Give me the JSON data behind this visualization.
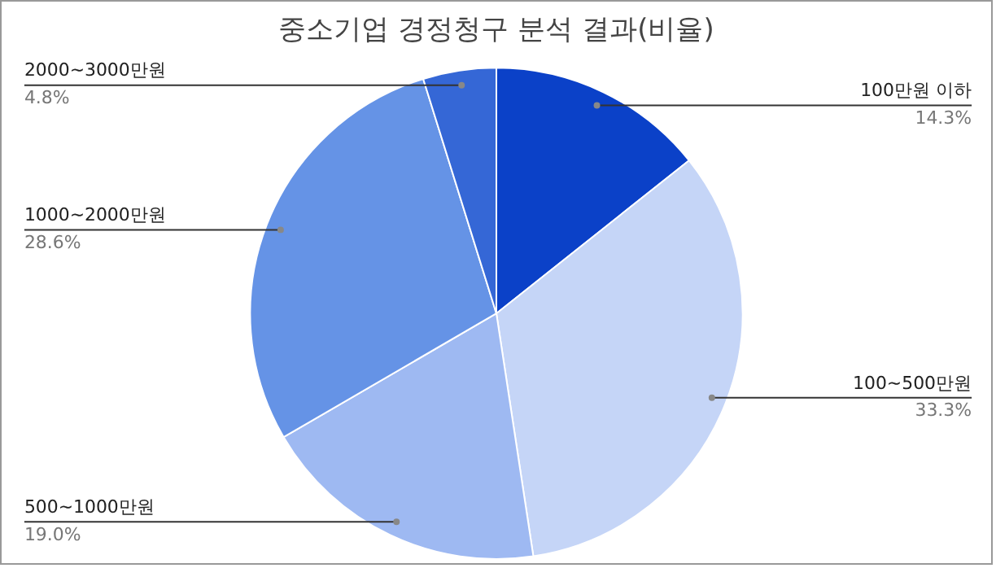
{
  "chart_data": {
    "type": "pie",
    "title": "중소기업 경정청구 분석 결과(비율)",
    "categories": [
      "100만원 이하",
      "100~500만원",
      "500~1000만원",
      "1000~2000만원",
      "2000~3000만원"
    ],
    "values": [
      14.3,
      33.3,
      19.0,
      28.6,
      4.8
    ],
    "colors": [
      "#0b41c8",
      "#c5d5f7",
      "#9eb9f2",
      "#6593e6",
      "#3567d6"
    ],
    "value_labels": [
      "14.3%",
      "33.3%",
      "19.0%",
      "28.6%",
      "4.8%"
    ],
    "legend": false
  }
}
